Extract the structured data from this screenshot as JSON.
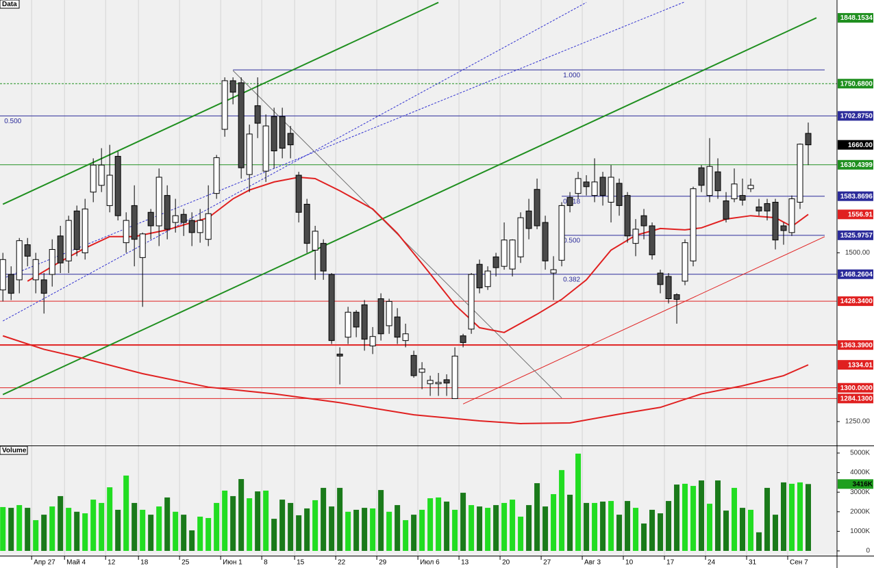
{
  "chart_data": [
    {
      "type": "candlestick",
      "title": "Data",
      "categories": [
        null,
        null,
        null,
        null,
        "Апр 27",
        null,
        null,
        null,
        "Май 4",
        null,
        null,
        null,
        null,
        "12",
        null,
        null,
        null,
        "18",
        null,
        null,
        null,
        null,
        "25",
        null,
        null,
        null,
        null,
        "Июн 1",
        null,
        null,
        null,
        null,
        "8",
        null,
        null,
        null,
        "15",
        null,
        null,
        null,
        null,
        "22",
        null,
        null,
        null,
        null,
        "29",
        null,
        null,
        null,
        null,
        "Июл 6",
        null,
        null,
        null,
        null,
        "13",
        null,
        null,
        null,
        null,
        "20",
        null,
        null,
        null,
        null,
        "27",
        null,
        null,
        null,
        null,
        "Авг 3",
        null,
        null,
        null,
        null,
        "10",
        null,
        null,
        null,
        null,
        "17",
        null,
        null,
        null,
        null,
        "24",
        null,
        null,
        null,
        null,
        "31",
        null,
        null,
        null,
        null,
        "Сен 7",
        null,
        null
      ],
      "open": [
        1445,
        1468,
        1460,
        1512,
        1460,
        1460,
        1468,
        1525,
        1488,
        1562,
        1500,
        1590,
        1600,
        1570,
        1643,
        1515,
        1570,
        1493,
        1560,
        1540,
        1585,
        1545,
        1557,
        1548,
        1530,
        1520,
        1588,
        1683,
        1755,
        1752,
        1616,
        1718,
        1621,
        1702,
        1702,
        1677,
        1615,
        1572,
        1504,
        1514,
        1468,
        1350,
        1375,
        1412,
        1423,
        1362,
        1432,
        1392,
        1405,
        1370,
        1348,
        1323,
        1306,
        1306,
        1312,
        1284,
        1377,
        1387,
        1483,
        1450,
        1494,
        1480,
        1476,
        1494,
        1562,
        1594,
        1545,
        1470,
        1489,
        1582,
        1588,
        1605,
        1585,
        1612,
        1575,
        1603,
        1585,
        1514,
        1555,
        1540,
        1470,
        1465,
        1438,
        1458,
        1488,
        1626,
        1585,
        1620,
        1577,
        1580,
        1585,
        1595,
        1568,
        1573,
        1575,
        1540,
        1530,
        1575,
        1677
      ],
      "high": [
        1500,
        1480,
        1522,
        1522,
        1500,
        1470,
        1520,
        1540,
        1555,
        1570,
        1580,
        1640,
        1655,
        1660,
        1650,
        1560,
        1600,
        1530,
        1565,
        1625,
        1600,
        1580,
        1565,
        1560,
        1565,
        1600,
        1645,
        1760,
        1760,
        1760,
        1690,
        1760,
        1705,
        1715,
        1715,
        1688,
        1620,
        1580,
        1540,
        1520,
        1470,
        1360,
        1420,
        1415,
        1430,
        1390,
        1440,
        1432,
        1418,
        1395,
        1355,
        1338,
        1318,
        1322,
        1320,
        1360,
        1380,
        1470,
        1490,
        1480,
        1500,
        1545,
        1520,
        1560,
        1580,
        1610,
        1555,
        1495,
        1575,
        1590,
        1620,
        1615,
        1640,
        1620,
        1630,
        1610,
        1590,
        1550,
        1565,
        1545,
        1475,
        1470,
        1440,
        1520,
        1598,
        1630,
        1670,
        1640,
        1590,
        1625,
        1610,
        1610,
        1580,
        1580,
        1580,
        1545,
        1585,
        1662,
        1693
      ],
      "low": [
        1428,
        1430,
        1440,
        1480,
        1440,
        1410,
        1450,
        1470,
        1470,
        1495,
        1490,
        1575,
        1590,
        1560,
        1548,
        1500,
        1480,
        1420,
        1520,
        1510,
        1520,
        1530,
        1525,
        1510,
        1515,
        1510,
        1580,
        1672,
        1720,
        1610,
        1590,
        1670,
        1605,
        1625,
        1640,
        1640,
        1545,
        1500,
        1460,
        1460,
        1365,
        1305,
        1365,
        1375,
        1355,
        1350,
        1370,
        1380,
        1365,
        1360,
        1315,
        1298,
        1288,
        1288,
        1288,
        1284,
        1360,
        1380,
        1440,
        1445,
        1465,
        1475,
        1465,
        1485,
        1520,
        1535,
        1475,
        1430,
        1480,
        1560,
        1580,
        1585,
        1575,
        1570,
        1545,
        1555,
        1515,
        1495,
        1520,
        1490,
        1440,
        1425,
        1395,
        1452,
        1480,
        1590,
        1575,
        1580,
        1545,
        1575,
        1570,
        1590,
        1555,
        1548,
        1505,
        1512,
        1525,
        1565,
        1630
      ],
      "close": [
        1490,
        1440,
        1518,
        1495,
        1490,
        1440,
        1505,
        1485,
        1548,
        1505,
        1565,
        1630,
        1630,
        1615,
        1555,
        1548,
        1520,
        1528,
        1540,
        1612,
        1535,
        1555,
        1545,
        1530,
        1548,
        1558,
        1641,
        1755,
        1738,
        1626,
        1676,
        1692,
        1688,
        1651,
        1655,
        1660,
        1560,
        1514,
        1532,
        1473,
        1370,
        1347,
        1412,
        1390,
        1372,
        1376,
        1380,
        1428,
        1375,
        1380,
        1318,
        1328,
        1311,
        1308,
        1307,
        1347,
        1367,
        1468,
        1448,
        1473,
        1478,
        1519,
        1519,
        1552,
        1536,
        1540,
        1488,
        1475,
        1570,
        1570,
        1610,
        1598,
        1605,
        1585,
        1612,
        1570,
        1525,
        1535,
        1540,
        1497,
        1453,
        1432,
        1431,
        1515,
        1595,
        1600,
        1628,
        1592,
        1550,
        1602,
        1578,
        1600,
        1562,
        1562,
        1519,
        1533,
        1580,
        1661,
        1660
      ],
      "up_color": "#ffffff",
      "down_color": "#4a4a4a",
      "last_label": "1660.00",
      "last_color": "#000000",
      "xlim": [
        -0.35,
        101.5
      ],
      "ylim": [
        1214.5,
        1874.6
      ],
      "yticks": [
        {
          "value": 1250,
          "label": "1250.00"
        },
        {
          "value": 1500,
          "label": "1500.00"
        }
      ],
      "moving_averages": [
        {
          "color": "#e02020",
          "x": [
            3,
            7,
            10,
            13,
            16,
            20,
            23,
            25,
            28,
            30,
            33,
            36,
            38,
            41,
            45,
            48,
            51,
            55,
            58,
            61,
            65,
            68,
            71,
            74,
            77,
            80,
            83,
            85,
            88,
            91,
            94,
            96,
            98
          ],
          "values": [
            1458,
            1487,
            1507,
            1524,
            1524,
            1534,
            1545,
            1552,
            1580,
            1593,
            1605,
            1612,
            1610,
            1592,
            1565,
            1529,
            1484,
            1423,
            1389,
            1382,
            1409,
            1431,
            1460,
            1504,
            1526,
            1536,
            1534,
            1537,
            1550,
            1555,
            1552,
            1539,
            1556.91
          ],
          "last_label": "1556.91"
        },
        {
          "color": "#e02020",
          "x": [
            0,
            5,
            10,
            17,
            25,
            33,
            41,
            50,
            58,
            63,
            69,
            75,
            80,
            85,
            90,
            95,
            98
          ],
          "values": [
            1377,
            1357,
            1343,
            1321,
            1301,
            1291,
            1278,
            1260,
            1251,
            1247,
            1248,
            1261,
            1271,
            1291,
            1303,
            1318,
            1334.01
          ],
          "last_label": "1334.01"
        }
      ],
      "levels": [
        {
          "value": 1771,
          "color": "#2b2b9a",
          "start": 28,
          "ratio": "1.000",
          "ratio_at": 68
        },
        {
          "value": 1750.68,
          "label": "1750.6800",
          "color": "#1f8f1f",
          "dashed": true
        },
        {
          "value": 1702.875,
          "label": "1702.8750",
          "color": "#2b2b9a",
          "ratio": "0.500",
          "ratio_at": 0
        },
        {
          "value": 1630.4399,
          "label": "1630.4399",
          "color": "#1f8f1f"
        },
        {
          "value": 1583.8696,
          "label": "1583.8696",
          "color": "#2b2b9a",
          "start": 68,
          "ratio": "0.618",
          "ratio_at": 68
        },
        {
          "value": 1525.9757,
          "label": "1525.9757",
          "color": "#2b2b9a",
          "start": 68,
          "ratio": "0.500",
          "ratio_at": 68
        },
        {
          "value": 1468.2604,
          "label": "1468.2604",
          "color": "#2b2b9a",
          "ratio": "0.382",
          "ratio_at": 68
        },
        {
          "value": 1428.34,
          "label": "1428.3400",
          "color": "#e02020"
        },
        {
          "value": 1363.39,
          "label": "1363.3900",
          "color": "#e02020",
          "width": 2
        },
        {
          "value": 1300,
          "label": "1300.0000",
          "color": "#e02020"
        },
        {
          "value": 1284.13,
          "label": "1284.1300",
          "color": "#e02020"
        }
      ],
      "trendlines": [
        {
          "x": [
            0,
            53
          ],
          "y": [
            1572,
            1871
          ],
          "color": "#1f8f1f",
          "width": 2
        },
        {
          "x": [
            0,
            99
          ],
          "y": [
            1290,
            1848.1534
          ],
          "color": "#1f8f1f",
          "width": 2,
          "end_label": "1848.1534"
        },
        {
          "x": [
            0,
            71
          ],
          "y": [
            1399,
            1871
          ],
          "color": "#3030d0",
          "dashed": true
        },
        {
          "x": [
            0,
            83
          ],
          "y": [
            1462,
            1872
          ],
          "color": "#3030d0",
          "dashed": true
        },
        {
          "x": [
            56,
            100
          ],
          "y": [
            1276,
            1524
          ],
          "color": "#e02020"
        },
        {
          "x": [
            28,
            68
          ],
          "y": [
            1770,
            1285
          ],
          "color": "#707070"
        }
      ]
    },
    {
      "type": "bar",
      "title": "Volume",
      "values": [
        2240,
        2200,
        2340,
        2200,
        1570,
        1850,
        2270,
        2800,
        2200,
        2000,
        1920,
        2620,
        2450,
        3250,
        2100,
        3850,
        2450,
        2100,
        1850,
        2270,
        2730,
        2000,
        1850,
        1050,
        1750,
        1680,
        2450,
        3080,
        2800,
        3670,
        2690,
        3040,
        3080,
        1640,
        2620,
        2450,
        1820,
        2170,
        2590,
        3220,
        2270,
        3220,
        2000,
        2100,
        2200,
        2170,
        3110,
        2000,
        2340,
        1570,
        1850,
        2100,
        2690,
        2730,
        2520,
        2100,
        2970,
        2340,
        2270,
        2200,
        2340,
        2450,
        2620,
        1750,
        2340,
        3460,
        2270,
        2900,
        4130,
        2870,
        4970,
        2450,
        2450,
        2520,
        2550,
        1850,
        2550,
        2200,
        1400,
        2100,
        1920,
        2550,
        3390,
        3430,
        3320,
        3600,
        2410,
        3600,
        2060,
        3220,
        2200,
        2100,
        950,
        3220,
        1850,
        3500,
        3430,
        3500,
        3416
      ],
      "up_color": "#22dd22",
      "down_color": "#1a7a1a",
      "last_label": "3416K",
      "last_color": "#1f9f1f",
      "ylim": [
        0,
        5245
      ],
      "yticks": [
        0,
        {
          "value": 1000,
          "label": "1000K"
        },
        {
          "value": 2000,
          "label": "2000K"
        },
        {
          "value": 3000,
          "label": "3000K"
        },
        {
          "value": 4000,
          "label": "4000K"
        },
        {
          "value": 5000,
          "label": "5000K"
        }
      ]
    }
  ]
}
